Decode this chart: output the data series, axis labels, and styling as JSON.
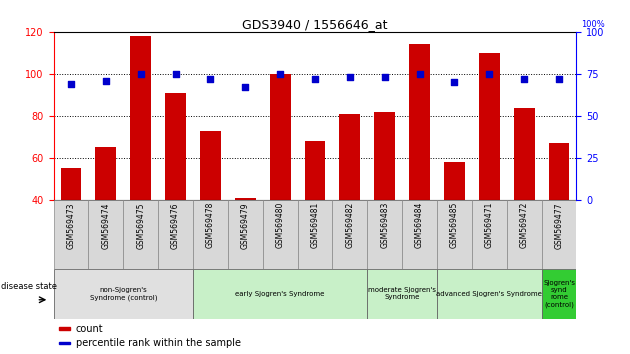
{
  "title": "GDS3940 / 1556646_at",
  "samples": [
    "GSM569473",
    "GSM569474",
    "GSM569475",
    "GSM569476",
    "GSM569478",
    "GSM569479",
    "GSM569480",
    "GSM569481",
    "GSM569482",
    "GSM569483",
    "GSM569484",
    "GSM569485",
    "GSM569471",
    "GSM569472",
    "GSM569477"
  ],
  "counts": [
    55,
    65,
    118,
    91,
    73,
    41,
    100,
    68,
    81,
    82,
    114,
    58,
    110,
    84,
    67
  ],
  "percentiles": [
    69,
    71,
    75,
    75,
    72,
    67,
    75,
    72,
    73,
    73,
    75,
    70,
    75,
    72,
    72
  ],
  "ylim_left": [
    40,
    120
  ],
  "ylim_right": [
    0,
    100
  ],
  "yticks_left": [
    40,
    60,
    80,
    100,
    120
  ],
  "yticks_right": [
    0,
    25,
    50,
    75,
    100
  ],
  "bar_color": "#cc0000",
  "dot_color": "#0000cc",
  "group_defs": [
    {
      "start": 0,
      "end": 3,
      "label": "non-Sjogren's\nSyndrome (control)",
      "color": "#e0e0e0"
    },
    {
      "start": 4,
      "end": 8,
      "label": "early Sjogren's Syndrome",
      "color": "#c8f0c8"
    },
    {
      "start": 9,
      "end": 10,
      "label": "moderate Sjogren's\nSyndrome",
      "color": "#c8f0c8"
    },
    {
      "start": 11,
      "end": 13,
      "label": "advanced Sjogren's Syndrome",
      "color": "#c8f0c8"
    },
    {
      "start": 14,
      "end": 14,
      "label": "Sjogren's\nsynd\nrome\n(control)",
      "color": "#33cc33"
    }
  ],
  "disease_state_label": "disease state",
  "legend_count_label": "count",
  "legend_percentile_label": "percentile rank within the sample",
  "bg_color": "#ffffff"
}
